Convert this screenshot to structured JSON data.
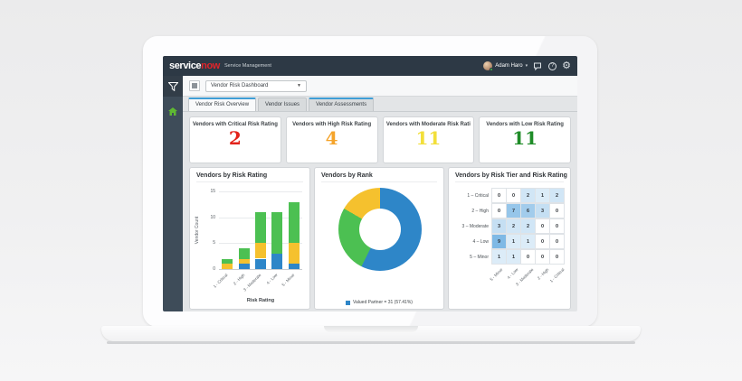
{
  "header": {
    "logo_service": "service",
    "logo_now": "now",
    "product": "Service Management",
    "user_name": "Adam Haro"
  },
  "icons": {
    "help_glyph": "?",
    "gear_glyph": "⚙",
    "dropdown_caret": "▼",
    "user_caret": "▾"
  },
  "toolbar": {
    "dashboard_selector": "Vendor Risk Dashboard"
  },
  "tabs": [
    {
      "label": "Vendor Risk Overview",
      "active": true,
      "accent": true
    },
    {
      "label": "Vendor Issues",
      "active": false,
      "accent": false
    },
    {
      "label": "Vendor Assessments",
      "active": false,
      "accent": true
    }
  ],
  "kpis": [
    {
      "label": "Vendors with Critical Risk Rating",
      "value": "2",
      "color": "#e2231a"
    },
    {
      "label": "Vendors with High Risk Rating",
      "value": "4",
      "color": "#f5a42b"
    },
    {
      "label": "Vendors with Moderate Risk Rati",
      "value": "11",
      "color": "#f2df3a"
    },
    {
      "label": "Vendors with Low Risk Rating",
      "value": "11",
      "color": "#1f8c28"
    }
  ],
  "chart_data": [
    {
      "type": "bar",
      "title": "Vendors by Risk Rating",
      "xlabel": "Risk Rating",
      "ylabel": "Vendor Count",
      "categories": [
        "1 - Critical",
        "2 - High",
        "3 - Moderate",
        "4 - Low",
        "5 - Minor"
      ],
      "series": [
        {
          "name": "segment-bottom",
          "color": "#2e86c8",
          "values": [
            0,
            1,
            2,
            3,
            1
          ]
        },
        {
          "name": "segment-middle",
          "color": "#f5c12e",
          "values": [
            1,
            1,
            3,
            0,
            4
          ]
        },
        {
          "name": "segment-top",
          "color": "#4cc052",
          "values": [
            1,
            2,
            6,
            8,
            8
          ]
        }
      ],
      "totals": [
        2,
        4,
        11,
        11,
        13
      ],
      "ylim": [
        0,
        15
      ],
      "yticks": [
        0,
        5,
        10,
        15
      ],
      "grid": true,
      "legend_position": "none"
    },
    {
      "type": "pie",
      "donut": true,
      "title": "Vendors by Rank",
      "slices": [
        {
          "name": "Valued Partner",
          "value": 31,
          "pct": 57.41,
          "color": "#2e86c8"
        },
        {
          "name": "",
          "value": 14,
          "pct": 25.93,
          "color": "#4cc052"
        },
        {
          "name": "",
          "value": 9,
          "pct": 16.66,
          "color": "#f5c12e"
        }
      ],
      "legend": [
        {
          "label": "Valued Partner = 31 (57.41%)",
          "color": "#2e86c8"
        }
      ],
      "legend_position": "bottom"
    },
    {
      "type": "heatmap",
      "title": "Vendors by Risk Tier and Risk Rating",
      "rows": [
        "1 – Critical",
        "2 – High",
        "3 – Moderate",
        "4 – Low",
        "5 – Minor"
      ],
      "cols": [
        "5 - Minor",
        "4 - Low",
        "3 - Moderate",
        "2 - High",
        "1 - Critical"
      ],
      "values": [
        [
          0,
          0,
          2,
          1,
          2
        ],
        [
          0,
          7,
          6,
          3,
          0
        ],
        [
          3,
          2,
          2,
          0,
          0
        ],
        [
          9,
          1,
          1,
          0,
          0
        ],
        [
          1,
          1,
          0,
          0,
          0
        ]
      ],
      "cell_color_zero": "#ffffff",
      "cell_color_max": "#7fb9e5"
    }
  ]
}
